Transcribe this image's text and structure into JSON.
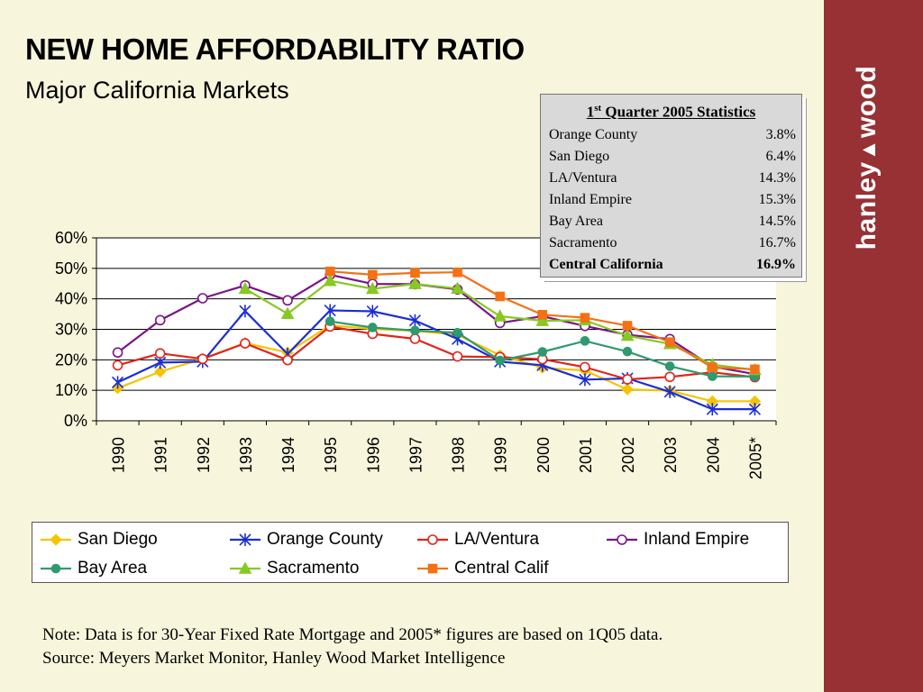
{
  "header": {
    "title": "NEW HOME AFFORDABILITY RATIO",
    "subtitle": "Major California Markets"
  },
  "brand": {
    "text_left": "hanley",
    "text_right": "wood"
  },
  "stats_box": {
    "title_prefix": "1",
    "title_sup": "st",
    "title_suffix": " Quarter 2005 Statistics",
    "rows": [
      {
        "label": "Orange County",
        "value": "3.8%"
      },
      {
        "label": "San Diego",
        "value": "6.4%"
      },
      {
        "label": "LA/Ventura",
        "value": "14.3%"
      },
      {
        "label": "Inland Empire",
        "value": "15.3%"
      },
      {
        "label": "Bay Area",
        "value": "14.5%"
      },
      {
        "label": "Sacramento",
        "value": "16.7%"
      },
      {
        "label": "Central California",
        "value": "16.9%"
      }
    ]
  },
  "chart_data": {
    "type": "line",
    "categories": [
      "1990",
      "1991",
      "1992",
      "1993",
      "1994",
      "1995",
      "1996",
      "1997",
      "1998",
      "1999",
      "2000",
      "2001",
      "2002",
      "2003",
      "2004",
      "2005*"
    ],
    "ylim": [
      0,
      60
    ],
    "yticks": [
      "0%",
      "10%",
      "20%",
      "30%",
      "40%",
      "50%",
      "60%"
    ],
    "grid": true,
    "legend_position": "bottom",
    "series": [
      {
        "name": "San Diego",
        "color": "#f5c400",
        "marker": "diamond",
        "values": [
          10.7,
          16.1,
          20.3,
          25.5,
          22.4,
          31.3,
          30.1,
          29.5,
          28.2,
          21.5,
          17.4,
          16.5,
          10.3,
          9.9,
          6.4,
          6.4
        ]
      },
      {
        "name": "Orange County",
        "color": "#1b2ed4",
        "marker": "asterisk",
        "values": [
          12.6,
          19.1,
          19.4,
          36.0,
          21.9,
          36.2,
          35.9,
          32.9,
          26.8,
          19.4,
          18.2,
          13.5,
          13.9,
          9.5,
          3.8,
          3.8
        ]
      },
      {
        "name": "LA/Ventura",
        "color": "#e0251b",
        "marker": "circle-open",
        "values": [
          18.2,
          22.1,
          20.3,
          25.4,
          19.9,
          30.9,
          28.5,
          26.9,
          21.1,
          20.9,
          20.2,
          17.6,
          13.6,
          14.4,
          15.9,
          14.3
        ]
      },
      {
        "name": "Inland Empire",
        "color": "#7a1487",
        "marker": "circle-open",
        "values": [
          22.4,
          33.0,
          40.2,
          44.4,
          39.5,
          47.9,
          44.9,
          44.8,
          43.1,
          32.1,
          34.3,
          31.1,
          28.2,
          26.8,
          17.8,
          15.3
        ]
      },
      {
        "name": "Bay Area",
        "color": "#2f9a6f",
        "marker": "circle",
        "values": [
          null,
          null,
          null,
          null,
          null,
          32.6,
          30.6,
          29.6,
          28.9,
          19.8,
          22.6,
          26.2,
          22.7,
          17.9,
          14.6,
          14.5
        ]
      },
      {
        "name": "Sacramento",
        "color": "#86c923",
        "marker": "triangle",
        "values": [
          null,
          null,
          null,
          43.3,
          35.1,
          45.9,
          43.3,
          44.9,
          43.4,
          34.3,
          32.8,
          33.0,
          27.9,
          25.2,
          18.4,
          16.7
        ]
      },
      {
        "name": "Central Calif",
        "color": "#f47114",
        "marker": "square",
        "values": [
          null,
          null,
          null,
          null,
          null,
          49.0,
          47.9,
          48.5,
          48.7,
          40.8,
          34.8,
          33.8,
          31.2,
          25.8,
          17.5,
          16.9
        ]
      }
    ]
  },
  "note": {
    "line1": "Note: Data is for 30-Year Fixed Rate Mortgage and 2005* figures are based on 1Q05 data.",
    "line2": "Source: Meyers Market Monitor, Hanley Wood Market Intelligence"
  }
}
